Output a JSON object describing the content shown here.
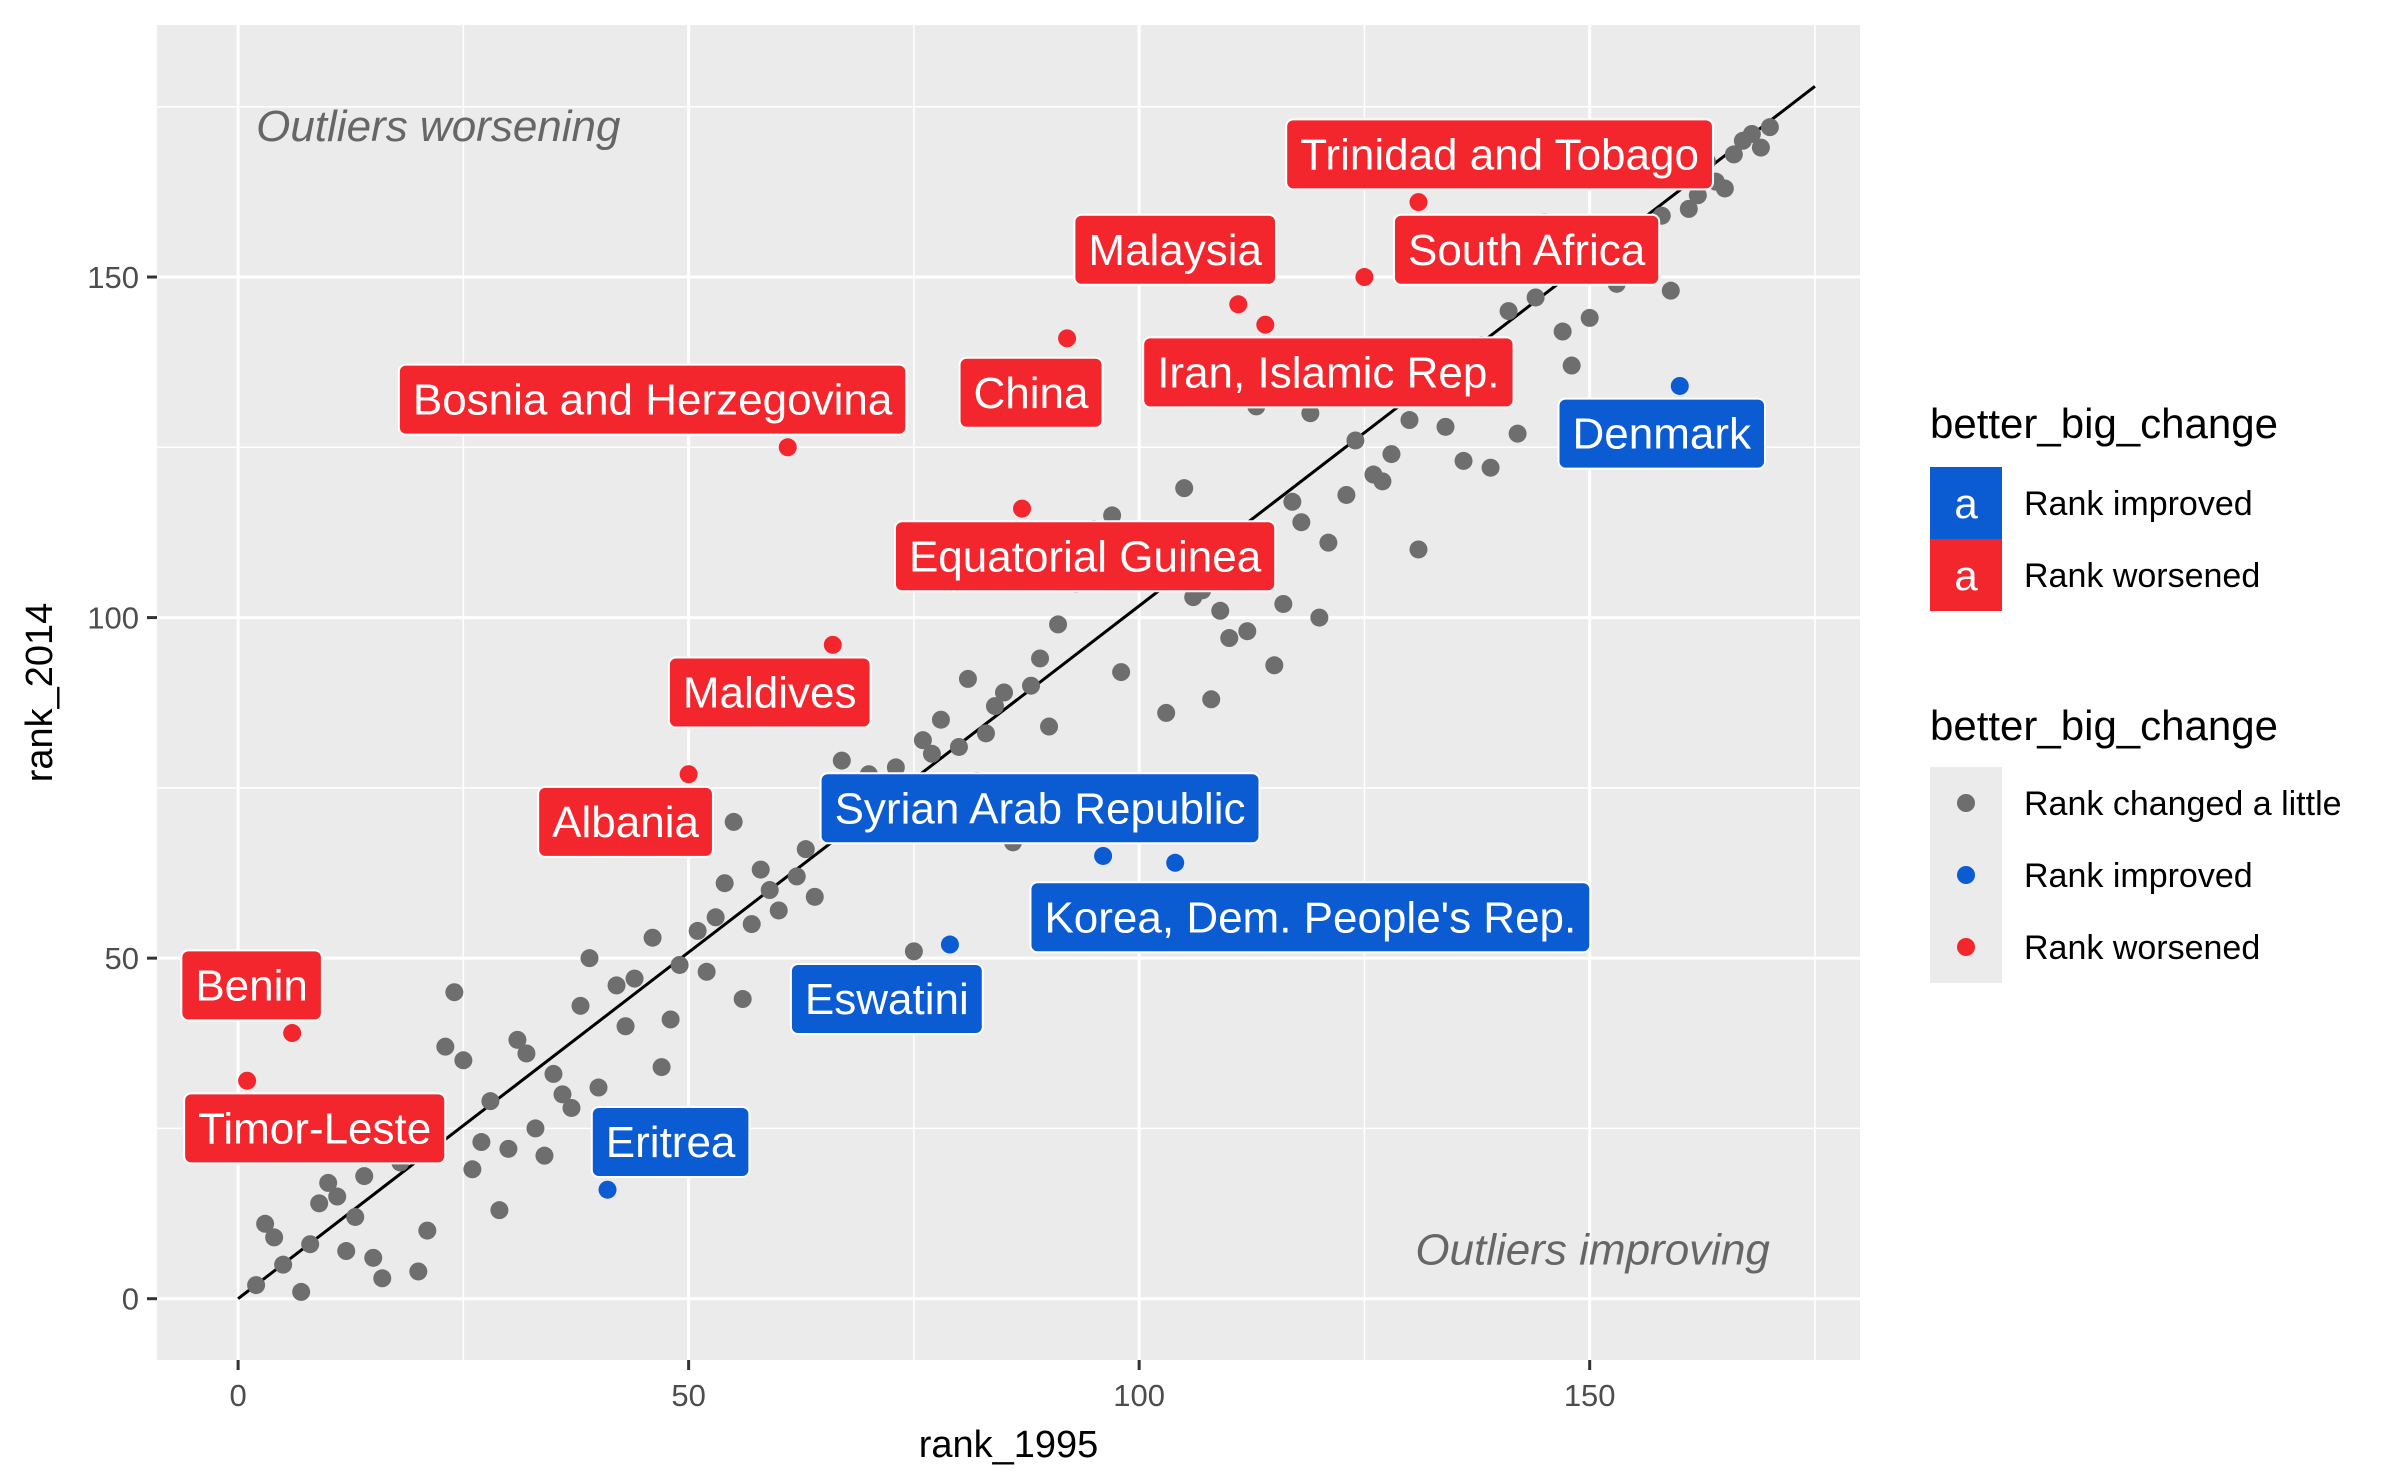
{
  "chart_data": {
    "type": "scatter",
    "xlabel": "rank_1995",
    "ylabel": "rank_2014",
    "xlim": [
      -9,
      180
    ],
    "ylim": [
      -9,
      187
    ],
    "x_ticks": [
      0,
      50,
      100,
      150
    ],
    "y_ticks": [
      0,
      50,
      100,
      150
    ],
    "grid": true,
    "reference_line": {
      "from": [
        0,
        0
      ],
      "to": [
        175,
        178
      ],
      "color": "#000000"
    },
    "annotations": [
      {
        "text": "Outliers worsening",
        "x": 2,
        "y": 170,
        "anchor": "start"
      },
      {
        "text": "Outliers improving",
        "x": 170,
        "y": 5,
        "anchor": "end"
      }
    ],
    "colors": {
      "Rank changed a little": "#6e6e6e",
      "Rank improved": "#0b5bd3",
      "Rank worsened": "#f2262c"
    },
    "legend": {
      "placement": "right",
      "fill_title": "better_big_change",
      "fill_entries": [
        {
          "glyph": "a",
          "label": "Rank improved",
          "color": "#0b5bd3"
        },
        {
          "glyph": "a",
          "label": "Rank worsened",
          "color": "#f2262c"
        }
      ],
      "point_title": "better_big_change",
      "point_entries": [
        {
          "label": "Rank changed a little",
          "color": "#6e6e6e"
        },
        {
          "label": "Rank improved",
          "color": "#0b5bd3"
        },
        {
          "label": "Rank worsened",
          "color": "#f2262c"
        }
      ]
    },
    "labels": [
      {
        "text": "Trinidad and Tobago",
        "group": "Rank worsened",
        "x": 140,
        "y": 168
      },
      {
        "text": "Malaysia",
        "group": "Rank worsened",
        "x": 104,
        "y": 154
      },
      {
        "text": "South Africa",
        "group": "Rank worsened",
        "x": 143,
        "y": 154
      },
      {
        "text": "Bosnia and Herzegovina",
        "group": "Rank worsened",
        "x": 46,
        "y": 132
      },
      {
        "text": "China",
        "group": "Rank worsened",
        "x": 88,
        "y": 133
      },
      {
        "text": "Iran, Islamic Rep.",
        "group": "Rank worsened",
        "x": 121,
        "y": 136
      },
      {
        "text": "Equatorial Guinea",
        "group": "Rank worsened",
        "x": 94,
        "y": 109
      },
      {
        "text": "Maldives",
        "group": "Rank worsened",
        "x": 59,
        "y": 89
      },
      {
        "text": "Albania",
        "group": "Rank worsened",
        "x": 43,
        "y": 70
      },
      {
        "text": "Benin",
        "group": "Rank worsened",
        "x": 1.5,
        "y": 46
      },
      {
        "text": "Timor-Leste",
        "group": "Rank worsened",
        "x": 8.5,
        "y": 25
      },
      {
        "text": "Denmark",
        "group": "Rank improved",
        "x": 158,
        "y": 127
      },
      {
        "text": "Syrian Arab Republic",
        "group": "Rank improved",
        "x": 89,
        "y": 72
      },
      {
        "text": "Korea, Dem. People's Rep.",
        "group": "Rank improved",
        "x": 119,
        "y": 56
      },
      {
        "text": "Eswatini",
        "group": "Rank improved",
        "x": 72,
        "y": 44
      },
      {
        "text": "Eritrea",
        "group": "Rank improved",
        "x": 48,
        "y": 23
      }
    ],
    "series": [
      {
        "name": "Rank changed a little",
        "points": [
          [
            2,
            2
          ],
          [
            3,
            11
          ],
          [
            4,
            9
          ],
          [
            5,
            5
          ],
          [
            7,
            1
          ],
          [
            8,
            8
          ],
          [
            9,
            14
          ],
          [
            10,
            17
          ],
          [
            11,
            15
          ],
          [
            12,
            7
          ],
          [
            13,
            12
          ],
          [
            14,
            18
          ],
          [
            15,
            6
          ],
          [
            16,
            3
          ],
          [
            18,
            20
          ],
          [
            19,
            22
          ],
          [
            20,
            4
          ],
          [
            21,
            10
          ],
          [
            23,
            37
          ],
          [
            24,
            45
          ],
          [
            25,
            35
          ],
          [
            26,
            19
          ],
          [
            27,
            23
          ],
          [
            28,
            29
          ],
          [
            29,
            13
          ],
          [
            30,
            22
          ],
          [
            31,
            38
          ],
          [
            32,
            36
          ],
          [
            33,
            25
          ],
          [
            34,
            21
          ],
          [
            35,
            33
          ],
          [
            36,
            30
          ],
          [
            37,
            28
          ],
          [
            38,
            43
          ],
          [
            39,
            50
          ],
          [
            40,
            31
          ],
          [
            42,
            46
          ],
          [
            43,
            40
          ],
          [
            44,
            47
          ],
          [
            46,
            53
          ],
          [
            47,
            34
          ],
          [
            48,
            41
          ],
          [
            49,
            49
          ],
          [
            51,
            54
          ],
          [
            52,
            48
          ],
          [
            53,
            56
          ],
          [
            54,
            61
          ],
          [
            55,
            70
          ],
          [
            56,
            44
          ],
          [
            57,
            55
          ],
          [
            58,
            63
          ],
          [
            59,
            60
          ],
          [
            60,
            57
          ],
          [
            62,
            62
          ],
          [
            63,
            66
          ],
          [
            64,
            59
          ],
          [
            67,
            79
          ],
          [
            70,
            77
          ],
          [
            73,
            78
          ],
          [
            75,
            51
          ],
          [
            76,
            82
          ],
          [
            77,
            80
          ],
          [
            78,
            85
          ],
          [
            80,
            81
          ],
          [
            81,
            91
          ],
          [
            82,
            76
          ],
          [
            83,
            83
          ],
          [
            84,
            87
          ],
          [
            85,
            89
          ],
          [
            86,
            67
          ],
          [
            87,
            74
          ],
          [
            88,
            90
          ],
          [
            89,
            94
          ],
          [
            90,
            84
          ],
          [
            91,
            99
          ],
          [
            93,
            105
          ],
          [
            95,
            113
          ],
          [
            97,
            115
          ],
          [
            98,
            92
          ],
          [
            100,
            112
          ],
          [
            103,
            86
          ],
          [
            105,
            119
          ],
          [
            106,
            103
          ],
          [
            107,
            104
          ],
          [
            108,
            88
          ],
          [
            109,
            101
          ],
          [
            110,
            97
          ],
          [
            111,
            108
          ],
          [
            112,
            98
          ],
          [
            113,
            131
          ],
          [
            115,
            93
          ],
          [
            116,
            102
          ],
          [
            117,
            117
          ],
          [
            118,
            114
          ],
          [
            119,
            130
          ],
          [
            120,
            100
          ],
          [
            121,
            111
          ],
          [
            122,
            134
          ],
          [
            123,
            118
          ],
          [
            124,
            126
          ],
          [
            126,
            121
          ],
          [
            127,
            120
          ],
          [
            128,
            124
          ],
          [
            130,
            129
          ],
          [
            131,
            110
          ],
          [
            133,
            137
          ],
          [
            134,
            128
          ],
          [
            135,
            133
          ],
          [
            136,
            123
          ],
          [
            137,
            138
          ],
          [
            138,
            140
          ],
          [
            139,
            122
          ],
          [
            140,
            136
          ],
          [
            141,
            145
          ],
          [
            142,
            127
          ],
          [
            144,
            147
          ],
          [
            145,
            158
          ],
          [
            146,
            150
          ],
          [
            147,
            142
          ],
          [
            148,
            137
          ],
          [
            150,
            144
          ],
          [
            152,
            152
          ],
          [
            153,
            149
          ],
          [
            155,
            154
          ],
          [
            156,
            157
          ],
          [
            158,
            159
          ],
          [
            159,
            148
          ],
          [
            161,
            160
          ],
          [
            162,
            162
          ],
          [
            163,
            167
          ],
          [
            164,
            164
          ],
          [
            165,
            163
          ],
          [
            166,
            168
          ],
          [
            167,
            170
          ],
          [
            168,
            171
          ],
          [
            169,
            169
          ],
          [
            170,
            172
          ]
        ]
      },
      {
        "name": "Rank improved",
        "points": [
          [
            41,
            16
          ],
          [
            79,
            52
          ],
          [
            96,
            65
          ],
          [
            104,
            64
          ],
          [
            160,
            134
          ]
        ]
      },
      {
        "name": "Rank worsened",
        "points": [
          [
            1,
            32
          ],
          [
            6,
            39
          ],
          [
            50,
            77
          ],
          [
            61,
            125
          ],
          [
            66,
            96
          ],
          [
            87,
            116
          ],
          [
            92,
            141
          ],
          [
            111,
            146
          ],
          [
            114,
            143
          ],
          [
            125,
            150
          ],
          [
            131,
            161
          ]
        ]
      }
    ]
  }
}
